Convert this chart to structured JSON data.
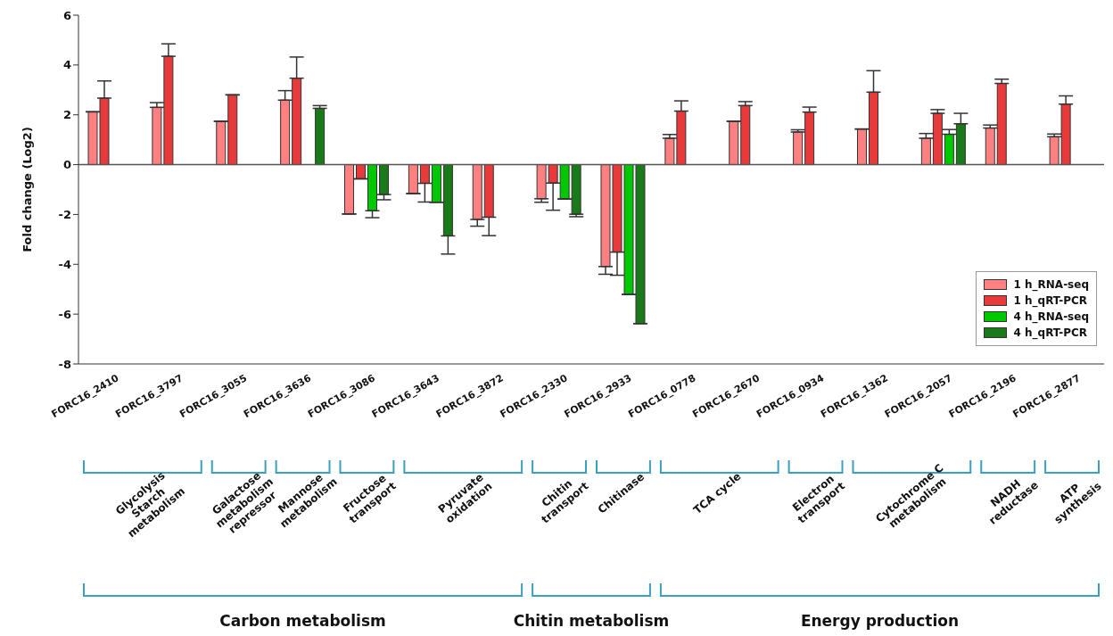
{
  "chart_data": {
    "type": "bar",
    "ylabel": "Fold change (Log2)",
    "categories": [
      "FORC16_2410",
      "FORC16_3797",
      "FORC16_3055",
      "FORC16_3636",
      "FORC16_3086",
      "FORC16_3643",
      "FORC16_3872",
      "FORC16_2330",
      "FORC16_2933",
      "FORC16_0778",
      "FORC16_2670",
      "FORC16_0934",
      "FORC16_1362",
      "FORC16_2057",
      "FORC16_2196",
      "FORC16_2877"
    ],
    "series": [
      {
        "name": "1 h_RNA-seq",
        "color": "#ff8080",
        "values": [
          2.12,
          2.3,
          1.74,
          2.59,
          -1.98,
          -1.16,
          -2.2,
          -1.37,
          -4.09,
          1.06,
          1.74,
          1.31,
          1.43,
          1.06,
          1.47,
          1.12
        ],
        "errors": [
          null,
          [
            2.3,
            2.49
          ],
          null,
          [
            2.59,
            2.97
          ],
          null,
          null,
          [
            -2.47,
            -2.2
          ],
          [
            -1.51,
            -1.37
          ],
          [
            -4.4,
            -4.09
          ],
          [
            1.06,
            1.21
          ],
          null,
          [
            1.31,
            1.4
          ],
          null,
          [
            1.06,
            1.25
          ],
          [
            1.47,
            1.59
          ],
          [
            1.12,
            1.23
          ]
        ]
      },
      {
        "name": "1 h_qRT-PCR",
        "color": "#e83a3a",
        "values": [
          2.67,
          4.35,
          2.8,
          3.47,
          -0.57,
          -0.75,
          -2.11,
          -0.74,
          -3.51,
          2.15,
          2.37,
          2.11,
          2.91,
          2.06,
          3.26,
          2.43
        ],
        "errors": [
          [
            2.67,
            3.36
          ],
          [
            4.35,
            4.85
          ],
          null,
          [
            3.47,
            4.32
          ],
          null,
          [
            -1.5,
            -0.75
          ],
          [
            -2.85,
            -2.11
          ],
          [
            -1.83,
            -0.74
          ],
          [
            -4.44,
            -3.51
          ],
          [
            2.15,
            2.56
          ],
          [
            2.37,
            2.53
          ],
          [
            2.11,
            2.31
          ],
          [
            2.91,
            3.77
          ],
          [
            2.06,
            2.21
          ],
          [
            3.26,
            3.43
          ],
          [
            2.43,
            2.76
          ]
        ]
      },
      {
        "name": "4 h_RNA-seq",
        "color": "#00c800",
        "values": [
          null,
          null,
          null,
          null,
          -1.85,
          -1.51,
          null,
          -1.38,
          -5.21,
          null,
          null,
          null,
          null,
          1.22,
          null,
          null
        ],
        "errors": [
          null,
          null,
          null,
          null,
          [
            -2.13,
            -1.85
          ],
          null,
          null,
          null,
          null,
          null,
          null,
          null,
          null,
          [
            1.22,
            1.41
          ],
          null,
          null
        ]
      },
      {
        "name": "4 h_qRT-PCR",
        "color": "#1a7a1a",
        "values": [
          null,
          null,
          null,
          2.26,
          -1.2,
          -2.86,
          null,
          -1.99,
          -6.38,
          null,
          null,
          null,
          null,
          1.64,
          null,
          null
        ],
        "errors": [
          null,
          null,
          null,
          [
            2.26,
            2.37
          ],
          [
            -1.41,
            -1.2
          ],
          [
            -3.59,
            -2.86
          ],
          null,
          [
            -2.09,
            -1.99
          ],
          null,
          null,
          null,
          null,
          null,
          [
            1.64,
            2.06
          ],
          null,
          null
        ]
      }
    ],
    "ylim": [
      -8,
      6
    ],
    "yticks": [
      -8,
      -6,
      -4,
      -2,
      0,
      2,
      4,
      6
    ],
    "legend": "bottom right",
    "annotations": [
      "Glycolysis\nStarch\nmetabolism",
      "Galactose\nmetabolism\nrepressor",
      "Mannose\nmetabolism",
      "Fructose\ntransport",
      "Pyruvate\noxidation",
      "Chitin\ntransport",
      "Chitinase",
      "TCA cycle",
      "Electron\ntransport",
      "Cytochrome C\nmetabolism",
      "NADH\nreductase",
      "ATP\nsynthesis",
      "Carbon metabolism",
      "Chitin metabolism",
      "Energy production"
    ]
  }
}
